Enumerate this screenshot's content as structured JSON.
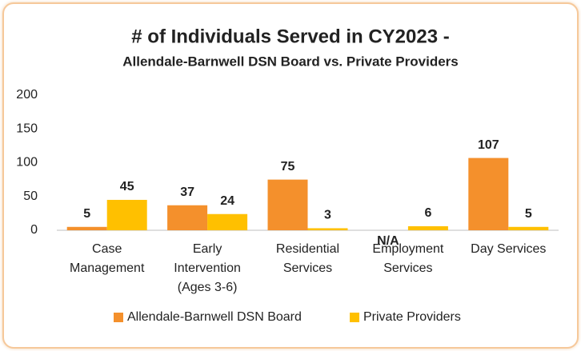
{
  "chart_data": {
    "type": "bar",
    "title": "# of Individuals Served in CY2023 -",
    "subtitle": "Allendale-Barnwell DSN Board vs. Private Providers",
    "categories": [
      "Case Management",
      "Early Intervention (Ages 3-6)",
      "Residential Services",
      "Employment Services",
      "Day Services"
    ],
    "series": [
      {
        "name": "Allendale-Barnwell DSN Board",
        "color": "#f4902c",
        "values": [
          5,
          37,
          75,
          null,
          107
        ],
        "value_labels": [
          "5",
          "37",
          "75",
          "N/A",
          "107"
        ]
      },
      {
        "name": "Private Providers",
        "color": "#ffc000",
        "values": [
          45,
          24,
          3,
          6,
          5
        ]
      }
    ],
    "ylim": [
      0,
      200
    ],
    "yticks": [
      0,
      50,
      100,
      150,
      200
    ],
    "grid": false,
    "legend": "bottom"
  }
}
